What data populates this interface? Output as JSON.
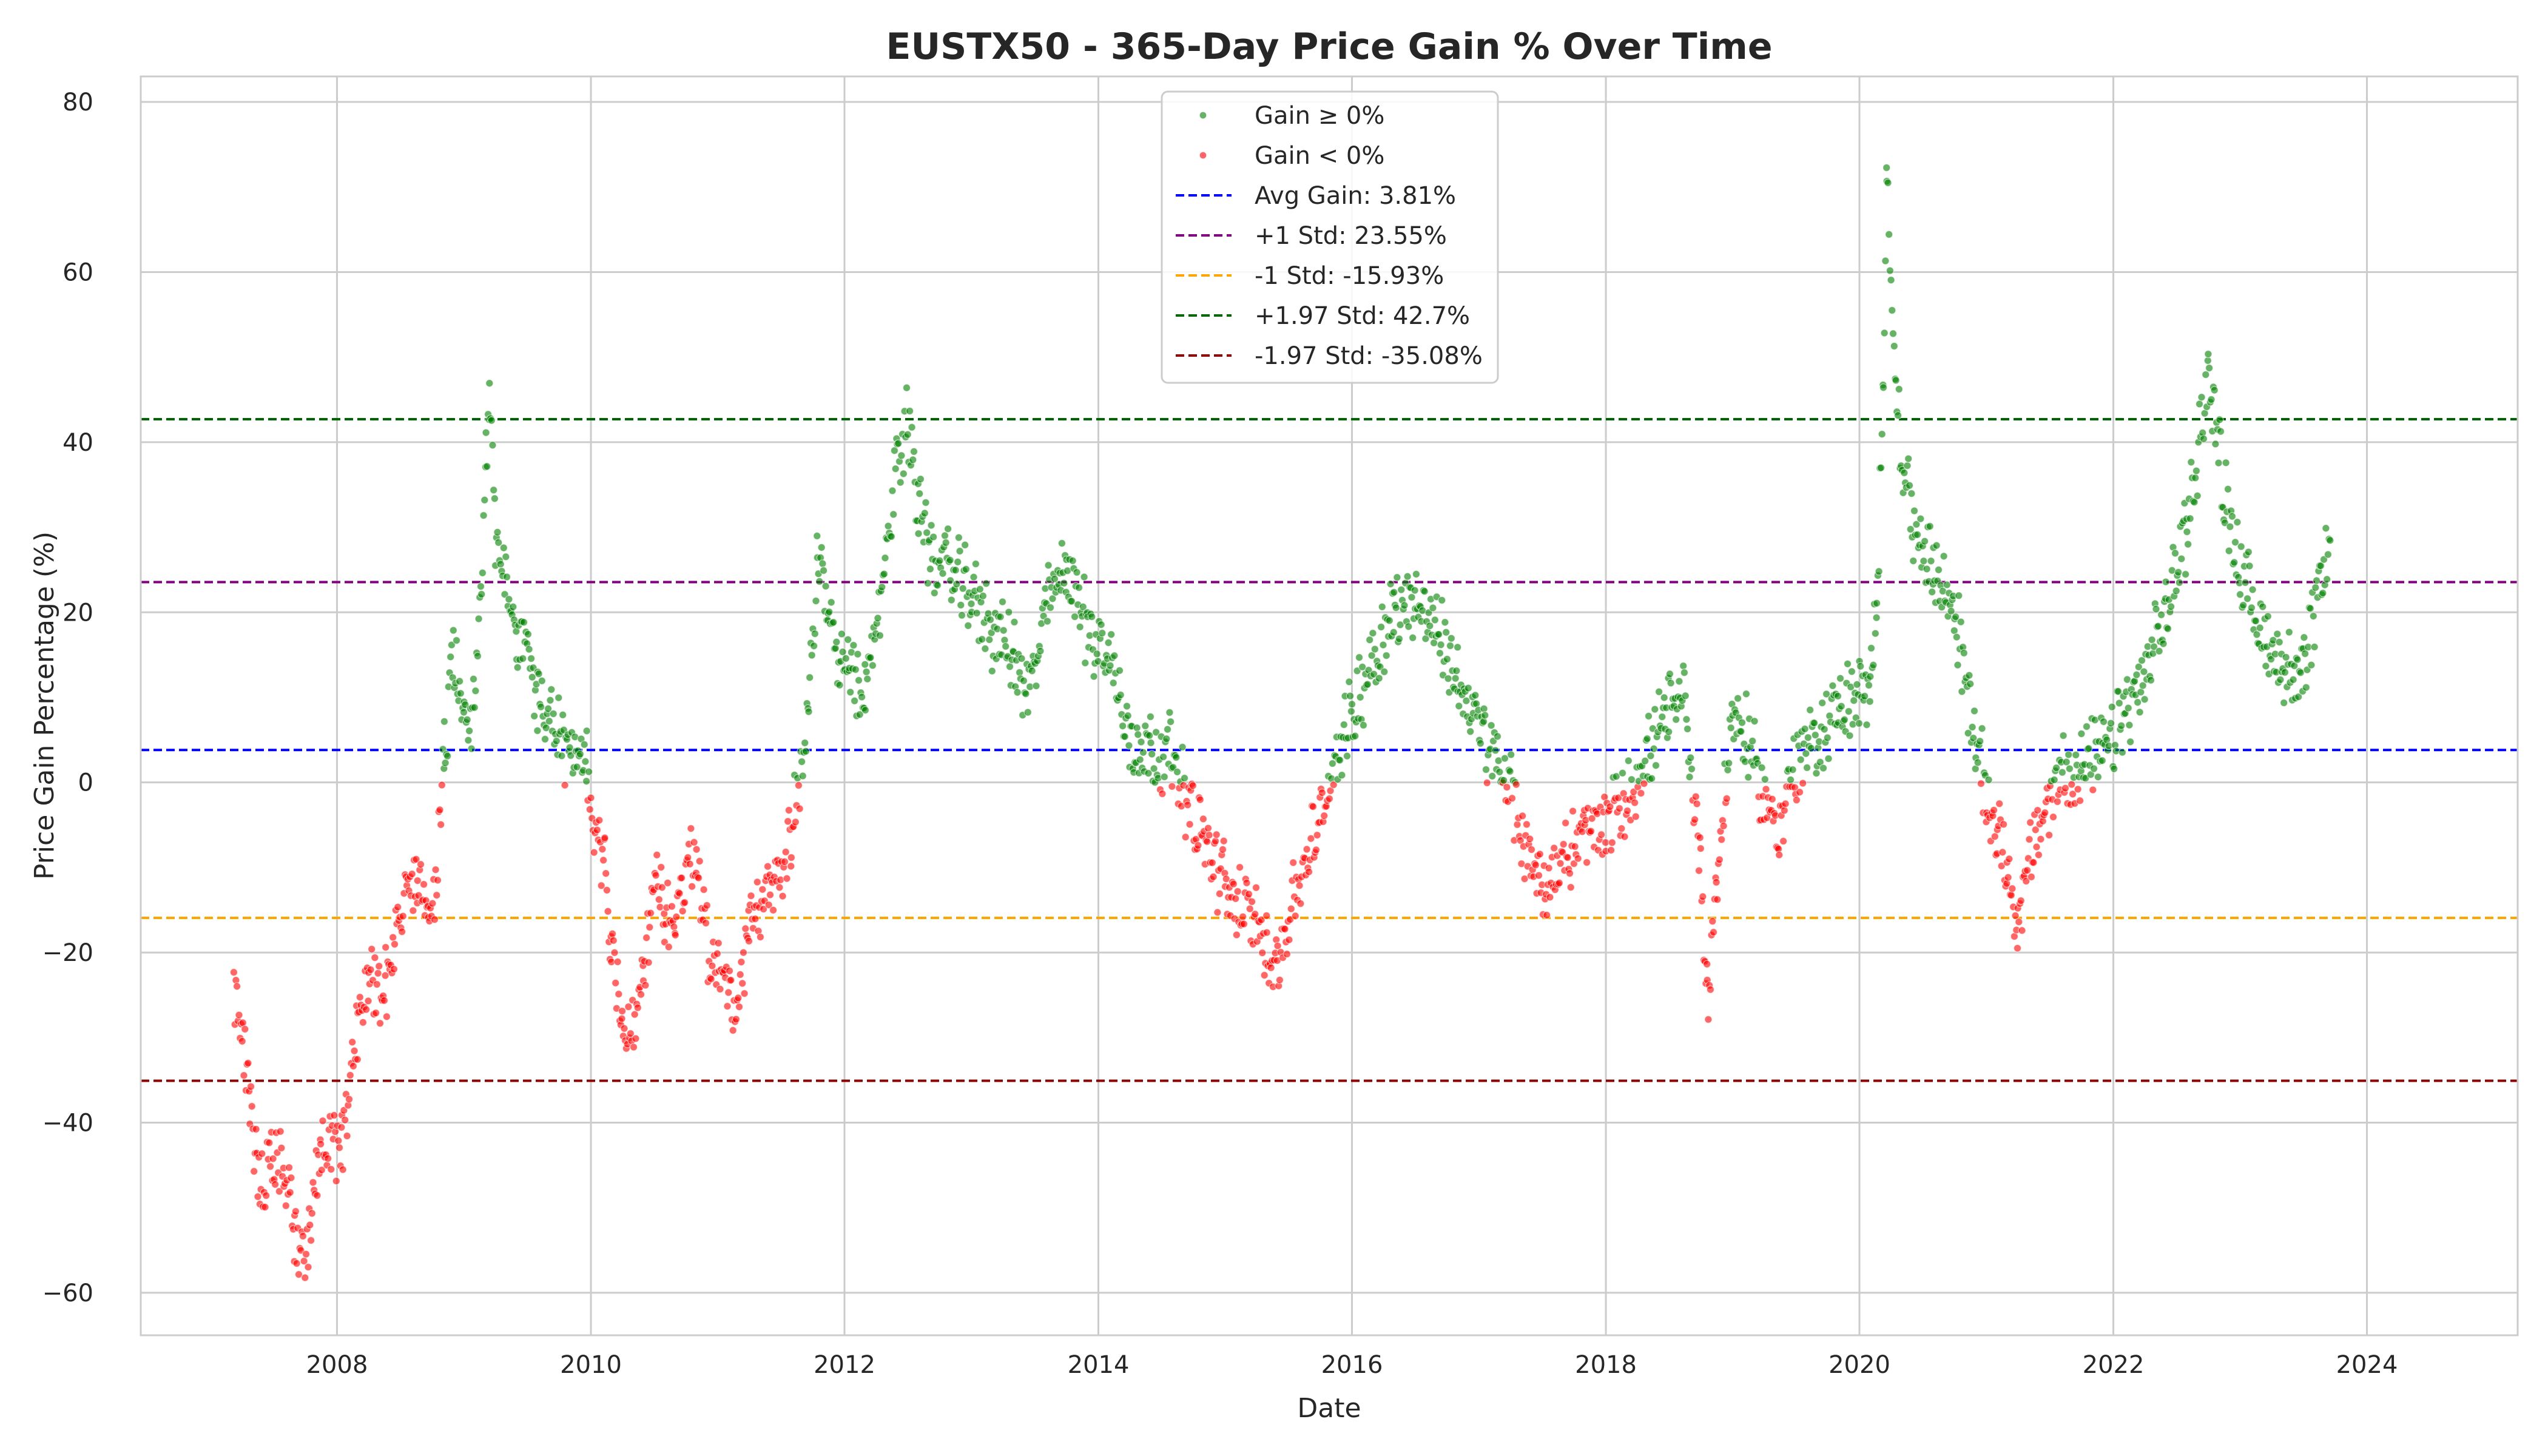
{
  "chart_data": {
    "type": "scatter",
    "title": "EUSTX50 - 365-Day Price Gain % Over Time",
    "xlabel": "Date",
    "ylabel": "Price Gain Percentage (%)",
    "xlim": [
      "2006-06-15",
      "2025-03-10"
    ],
    "ylim": [
      -65,
      83
    ],
    "x_ticks": [
      "2008",
      "2010",
      "2012",
      "2014",
      "2016",
      "2018",
      "2020",
      "2022",
      "2024"
    ],
    "y_ticks": [
      -60,
      -40,
      -20,
      0,
      20,
      40,
      60,
      80
    ],
    "grid": true,
    "legend_position": "top-center",
    "colors": {
      "gain": "#008000",
      "loss": "#ff0000",
      "avg": "#0000ff",
      "plus1": "#800080",
      "minus1": "#ffa500",
      "plus197": "#006400",
      "minus197": "#8b0000"
    },
    "series": [
      {
        "name": "Gain ≥ 0%",
        "kind": "points",
        "rule": "y >= 0"
      },
      {
        "name": "Gain < 0%",
        "kind": "points",
        "rule": "y < 0"
      }
    ],
    "reference_lines": [
      {
        "name": "Avg Gain: 3.81%",
        "y": 3.81,
        "color_key": "avg"
      },
      {
        "name": "+1 Std: 23.55%",
        "y": 23.55,
        "color_key": "plus1"
      },
      {
        "name": "-1 Std: -15.93%",
        "y": -15.93,
        "color_key": "minus1"
      },
      {
        "name": "+1.97 Std: 42.7%",
        "y": 42.7,
        "color_key": "plus197"
      },
      {
        "name": "-1.97 Std: -35.08%",
        "y": -35.08,
        "color_key": "minus197"
      }
    ],
    "trend_points": [
      [
        "2007-03-10",
        -24
      ],
      [
        "2007-04-05",
        -30
      ],
      [
        "2007-04-25",
        -39
      ],
      [
        "2007-05-15",
        -44
      ],
      [
        "2007-06-05",
        -47
      ],
      [
        "2007-07-01",
        -45
      ],
      [
        "2007-08-01",
        -46
      ],
      [
        "2007-09-01",
        -52
      ],
      [
        "2007-09-25",
        -57
      ],
      [
        "2007-10-15",
        -51
      ],
      [
        "2007-11-15",
        -44
      ],
      [
        "2007-12-15",
        -43
      ],
      [
        "2008-01-15",
        -43
      ],
      [
        "2008-02-05",
        -35
      ],
      [
        "2008-03-01",
        -28
      ],
      [
        "2008-04-01",
        -23
      ],
      [
        "2008-05-01",
        -24
      ],
      [
        "2008-05-20",
        -23
      ],
      [
        "2008-06-15",
        -19
      ],
      [
        "2008-07-20",
        -12
      ],
      [
        "2008-08-20",
        -13
      ],
      [
        "2008-09-20",
        -16
      ],
      [
        "2008-10-20",
        -8
      ],
      [
        "2008-11-05",
        3
      ],
      [
        "2008-12-01",
        15
      ],
      [
        "2009-01-01",
        10
      ],
      [
        "2009-01-25",
        8
      ],
      [
        "2009-02-20",
        22
      ],
      [
        "2009-03-05",
        38
      ],
      [
        "2009-03-15",
        48
      ],
      [
        "2009-04-01",
        30
      ],
      [
        "2009-05-01",
        22
      ],
      [
        "2009-06-01",
        18
      ],
      [
        "2009-07-01",
        15
      ],
      [
        "2009-08-01",
        10
      ],
      [
        "2009-09-15",
        7
      ],
      [
        "2009-11-01",
        3
      ],
      [
        "2009-12-20",
        1
      ],
      [
        "2010-01-10",
        -5
      ],
      [
        "2010-02-10",
        -8
      ],
      [
        "2010-03-01",
        -20
      ],
      [
        "2010-04-01",
        -27
      ],
      [
        "2010-05-01",
        -30
      ],
      [
        "2010-06-01",
        -22
      ],
      [
        "2010-07-01",
        -12
      ],
      [
        "2010-08-01",
        -15
      ],
      [
        "2010-09-01",
        -16
      ],
      [
        "2010-10-01",
        -10
      ],
      [
        "2010-11-01",
        -8
      ],
      [
        "2010-12-01",
        -18
      ],
      [
        "2011-01-05",
        -22
      ],
      [
        "2011-02-05",
        -25
      ],
      [
        "2011-03-01",
        -27
      ],
      [
        "2011-04-01",
        -18
      ],
      [
        "2011-05-01",
        -15
      ],
      [
        "2011-06-01",
        -13
      ],
      [
        "2011-07-01",
        -10
      ],
      [
        "2011-08-01",
        -5
      ],
      [
        "2011-08-25",
        0
      ],
      [
        "2011-09-20",
        10
      ],
      [
        "2011-10-15",
        25
      ],
      [
        "2011-11-15",
        20
      ],
      [
        "2011-12-15",
        15
      ],
      [
        "2012-01-15",
        12
      ],
      [
        "2012-03-01",
        10
      ],
      [
        "2012-04-15",
        22
      ],
      [
        "2012-06-01",
        38
      ],
      [
        "2012-07-01",
        42
      ],
      [
        "2012-08-01",
        34
      ],
      [
        "2012-09-01",
        27
      ],
      [
        "2012-11-01",
        25
      ],
      [
        "2013-01-01",
        22
      ],
      [
        "2013-03-01",
        18
      ],
      [
        "2013-05-01",
        15
      ],
      [
        "2013-06-15",
        10
      ],
      [
        "2013-08-01",
        20
      ],
      [
        "2013-10-01",
        26
      ],
      [
        "2013-12-01",
        18
      ],
      [
        "2014-02-01",
        15
      ],
      [
        "2014-04-01",
        5
      ],
      [
        "2014-06-01",
        4
      ],
      [
        "2014-08-01",
        3
      ],
      [
        "2014-09-15",
        -2
      ],
      [
        "2014-11-01",
        -7
      ],
      [
        "2015-01-01",
        -12
      ],
      [
        "2015-03-01",
        -15
      ],
      [
        "2015-05-01",
        -19
      ],
      [
        "2015-06-01",
        -21
      ],
      [
        "2015-07-01",
        -16
      ],
      [
        "2015-08-15",
        -10
      ],
      [
        "2015-10-01",
        -5
      ],
      [
        "2015-11-15",
        3
      ],
      [
        "2016-01-01",
        8
      ],
      [
        "2016-03-01",
        15
      ],
      [
        "2016-05-01",
        20
      ],
      [
        "2016-07-01",
        22
      ],
      [
        "2016-09-01",
        18
      ],
      [
        "2016-11-01",
        12
      ],
      [
        "2016-12-15",
        8
      ],
      [
        "2017-01-15",
        5
      ],
      [
        "2017-03-01",
        2
      ],
      [
        "2017-04-15",
        -3
      ],
      [
        "2017-06-01",
        -10
      ],
      [
        "2017-07-15",
        -12
      ],
      [
        "2017-09-01",
        -9
      ],
      [
        "2017-11-01",
        -6
      ],
      [
        "2018-01-01",
        -5
      ],
      [
        "2018-03-01",
        -2
      ],
      [
        "2018-05-01",
        3
      ],
      [
        "2018-07-01",
        8
      ],
      [
        "2018-08-15",
        10
      ],
      [
        "2018-10-01",
        -10
      ],
      [
        "2018-10-20",
        -25
      ],
      [
        "2018-11-15",
        -12
      ],
      [
        "2019-01-01",
        8
      ],
      [
        "2019-02-15",
        5
      ],
      [
        "2019-04-01",
        -2
      ],
      [
        "2019-05-15",
        -5
      ],
      [
        "2019-07-01",
        2
      ],
      [
        "2019-09-01",
        5
      ],
      [
        "2019-11-01",
        9
      ],
      [
        "2020-01-01",
        10
      ],
      [
        "2020-02-01",
        10
      ],
      [
        "2020-02-20",
        20
      ],
      [
        "2020-03-10",
        50
      ],
      [
        "2020-03-20",
        72
      ],
      [
        "2020-04-15",
        45
      ],
      [
        "2020-06-01",
        30
      ],
      [
        "2020-08-01",
        25
      ],
      [
        "2020-10-01",
        20
      ],
      [
        "2020-12-01",
        5
      ],
      [
        "2021-01-01",
        -2
      ],
      [
        "2021-02-01",
        -5
      ],
      [
        "2021-03-01",
        -10
      ],
      [
        "2021-04-01",
        -16
      ],
      [
        "2021-05-01",
        -10
      ],
      [
        "2021-06-15",
        -4
      ],
      [
        "2021-08-01",
        1
      ],
      [
        "2021-10-01",
        2
      ],
      [
        "2021-12-01",
        3
      ],
      [
        "2022-02-01",
        8
      ],
      [
        "2022-04-01",
        12
      ],
      [
        "2022-06-01",
        20
      ],
      [
        "2022-08-01",
        30
      ],
      [
        "2022-10-01",
        48
      ],
      [
        "2022-11-15",
        35
      ],
      [
        "2023-01-01",
        25
      ],
      [
        "2023-03-01",
        18
      ],
      [
        "2023-05-01",
        14
      ],
      [
        "2023-07-01",
        12
      ],
      [
        "2023-08-15",
        22
      ],
      [
        "2023-09-20",
        29
      ]
    ]
  }
}
